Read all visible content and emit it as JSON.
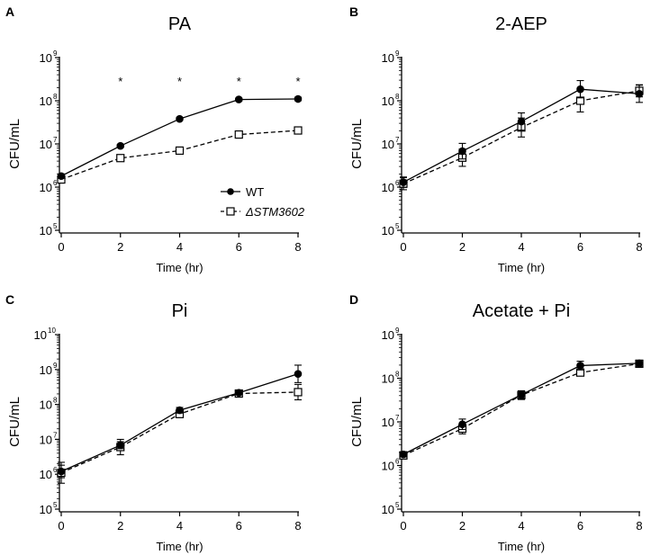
{
  "chart_data": [
    {
      "type": "line",
      "panel_label": "A",
      "title": "PA",
      "xlabel": "Time (hr)",
      "ylabel": "CFU/mL",
      "yscale": "log",
      "xlim": [
        0,
        8
      ],
      "xticks": [
        "0",
        "2",
        "4",
        "6",
        "8"
      ],
      "ylim_log10": [
        5,
        9
      ],
      "ytick_exponents": [
        "5",
        "6",
        "7",
        "8",
        "9"
      ],
      "ytick_base": "10",
      "x": [
        0,
        2,
        4,
        6,
        8
      ],
      "series": [
        {
          "name": "WT",
          "marker": "filled-circle",
          "dash": "solid",
          "values": [
            1800000.0,
            9000000.0,
            38000000.0,
            107000000.0,
            110000000.0
          ],
          "err_log10": [
            0.05,
            0.03,
            0.03,
            0.03,
            0.04
          ]
        },
        {
          "name": "ΔSTM3602",
          "marker": "open-square",
          "dash": "dashed",
          "values": [
            1500000.0,
            4700000.0,
            7000000.0,
            16500000.0,
            20500000.0
          ],
          "err_log10": [
            0.05,
            0.03,
            0.04,
            0.08,
            0.05
          ]
        }
      ],
      "annotations": [
        {
          "x": 2,
          "text": "*"
        },
        {
          "x": 4,
          "text": "*"
        },
        {
          "x": 6,
          "text": "*"
        },
        {
          "x": 8,
          "text": "*"
        }
      ],
      "legend": {
        "position": "lower-right",
        "entries": [
          "WT",
          "ΔSTM3602"
        ]
      }
    },
    {
      "type": "line",
      "panel_label": "B",
      "title": "2-AEP",
      "xlabel": "Time (hr)",
      "ylabel": "CFU/mL",
      "yscale": "log",
      "xlim": [
        0,
        8
      ],
      "xticks": [
        "0",
        "2",
        "4",
        "6",
        "8"
      ],
      "ylim_log10": [
        5,
        9
      ],
      "ytick_exponents": [
        "5",
        "6",
        "7",
        "8",
        "9"
      ],
      "ytick_base": "10",
      "x": [
        0,
        2,
        4,
        6,
        8
      ],
      "series": [
        {
          "name": "WT",
          "marker": "filled-circle",
          "dash": "solid",
          "values": [
            1300000.0,
            6800000.0,
            33000000.0,
            185000000.0,
            145000000.0
          ],
          "err_log10": [
            0.12,
            0.18,
            0.2,
            0.2,
            0.2
          ]
        },
        {
          "name": "ΔSTM3602",
          "marker": "open-square",
          "dash": "dashed",
          "values": [
            1200000.0,
            4800000.0,
            24000000.0,
            100000000.0,
            170000000.0
          ],
          "err_log10": [
            0.14,
            0.2,
            0.22,
            0.26,
            0.14
          ]
        }
      ]
    },
    {
      "type": "line",
      "panel_label": "C",
      "title": "Pi",
      "xlabel": "Time (hr)",
      "ylabel": "CFU/mL",
      "yscale": "log",
      "xlim": [
        0,
        8
      ],
      "xticks": [
        "0",
        "2",
        "4",
        "6",
        "8"
      ],
      "ylim_log10": [
        5,
        10
      ],
      "ytick_exponents": [
        "5",
        "6",
        "7",
        "8",
        "9",
        "10"
      ],
      "ytick_base": "10",
      "x": [
        0,
        2,
        4,
        6,
        8
      ],
      "series": [
        {
          "name": "WT",
          "marker": "filled-circle",
          "dash": "solid",
          "values": [
            1200000.0,
            6800000.0,
            68000000.0,
            215000000.0,
            750000000.0
          ],
          "err_log10": [
            0.18,
            0.1,
            0.08,
            0.05,
            0.25
          ]
        },
        {
          "name": "ΔSTM3602",
          "marker": "open-square",
          "dash": "dashed",
          "values": [
            1100000.0,
            6000000.0,
            53000000.0,
            205000000.0,
            225000000.0
          ],
          "err_log10": [
            0.3,
            0.22,
            0.1,
            0.05,
            0.22
          ]
        }
      ]
    },
    {
      "type": "line",
      "panel_label": "D",
      "title": "Acetate + Pi",
      "xlabel": "Time (hr)",
      "ylabel": "CFU/mL",
      "yscale": "log",
      "xlim": [
        0,
        8
      ],
      "xticks": [
        "0",
        "2",
        "4",
        "6",
        "8"
      ],
      "ylim_log10": [
        5,
        9
      ],
      "ytick_exponents": [
        "5",
        "6",
        "7",
        "8",
        "9"
      ],
      "ytick_base": "10",
      "x": [
        0,
        2,
        4,
        6,
        8
      ],
      "series": [
        {
          "name": "WT",
          "marker": "filled-circle",
          "dash": "solid",
          "values": [
            1800000.0,
            8800000.0,
            42000000.0,
            195000000.0,
            220000000.0
          ],
          "err_log10": [
            0.06,
            0.12,
            0.08,
            0.1,
            0.07
          ]
        },
        {
          "name": "ΔSTM3602",
          "marker": "open-square",
          "dash": "dashed",
          "values": [
            1700000.0,
            7000000.0,
            41000000.0,
            135000000.0,
            215000000.0
          ],
          "err_log10": [
            0.08,
            0.12,
            0.1,
            0.05,
            0.06
          ]
        }
      ]
    }
  ]
}
